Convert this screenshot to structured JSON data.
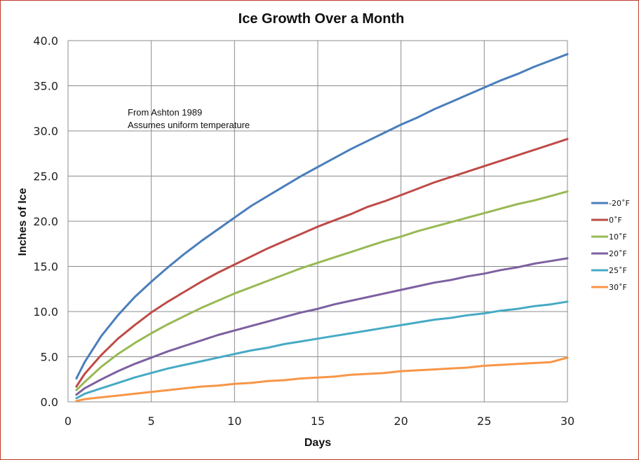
{
  "chart_data": {
    "type": "line",
    "title": "Ice Growth Over a Month",
    "xlabel": "Days",
    "ylabel": "Inches of Ice",
    "xlim": [
      0,
      30
    ],
    "ylim": [
      0,
      40
    ],
    "x_ticks": [
      "0",
      "5",
      "10",
      "15",
      "20",
      "25",
      "30"
    ],
    "y_ticks": [
      "0.0",
      "5.0",
      "10.0",
      "15.0",
      "20.0",
      "25.0",
      "30.0",
      "35.0",
      "40.0"
    ],
    "grid": true,
    "legend_position": "right",
    "annotations": [
      "From Ashton 1989",
      "Assumes uniform temperature"
    ],
    "x": [
      0.5,
      1,
      2,
      3,
      4,
      5,
      6,
      7,
      8,
      9,
      10,
      11,
      12,
      13,
      14,
      15,
      16,
      17,
      18,
      19,
      20,
      21,
      22,
      23,
      24,
      25,
      26,
      27,
      28,
      29,
      30
    ],
    "series": [
      {
        "name": "-20˚F",
        "color": "#4a7ebb",
        "values": [
          2.6,
          4.4,
          7.3,
          9.6,
          11.6,
          13.3,
          14.9,
          16.4,
          17.8,
          19.1,
          20.4,
          21.7,
          22.8,
          23.9,
          25.0,
          26.0,
          27.0,
          28.0,
          28.9,
          29.8,
          30.7,
          31.5,
          32.4,
          33.2,
          34.0,
          34.8,
          35.6,
          36.3,
          37.1,
          37.8,
          38.5
        ]
      },
      {
        "name": "0˚F",
        "color": "#be4b48",
        "values": [
          1.7,
          3.1,
          5.2,
          7.0,
          8.5,
          9.9,
          11.1,
          12.2,
          13.3,
          14.3,
          15.2,
          16.1,
          17.0,
          17.8,
          18.6,
          19.4,
          20.1,
          20.8,
          21.6,
          22.2,
          22.9,
          23.6,
          24.3,
          24.9,
          25.5,
          26.1,
          26.7,
          27.3,
          27.9,
          28.5,
          29.1
        ]
      },
      {
        "name": "10˚F",
        "color": "#98b954",
        "values": [
          1.3,
          2.2,
          3.9,
          5.3,
          6.5,
          7.6,
          8.6,
          9.5,
          10.4,
          11.2,
          12.0,
          12.7,
          13.4,
          14.1,
          14.8,
          15.4,
          16.0,
          16.6,
          17.2,
          17.8,
          18.3,
          18.9,
          19.4,
          19.9,
          20.4,
          20.9,
          21.4,
          21.9,
          22.3,
          22.8,
          23.3
        ]
      },
      {
        "name": "20˚F",
        "color": "#7d60a0",
        "values": [
          0.8,
          1.5,
          2.5,
          3.4,
          4.2,
          4.9,
          5.6,
          6.2,
          6.8,
          7.4,
          7.9,
          8.4,
          8.9,
          9.4,
          9.9,
          10.3,
          10.8,
          11.2,
          11.6,
          12.0,
          12.4,
          12.8,
          13.2,
          13.5,
          13.9,
          14.2,
          14.6,
          14.9,
          15.3,
          15.6,
          15.9
        ]
      },
      {
        "name": "25˚F",
        "color": "#46aac5",
        "values": [
          0.4,
          0.9,
          1.5,
          2.1,
          2.7,
          3.2,
          3.7,
          4.1,
          4.5,
          4.9,
          5.3,
          5.7,
          6.0,
          6.4,
          6.7,
          7.0,
          7.3,
          7.6,
          7.9,
          8.2,
          8.5,
          8.8,
          9.1,
          9.3,
          9.6,
          9.8,
          10.1,
          10.3,
          10.6,
          10.8,
          11.1
        ]
      },
      {
        "name": "30˚F",
        "color": "#f79646",
        "values": [
          0.1,
          0.3,
          0.5,
          0.7,
          0.9,
          1.1,
          1.3,
          1.5,
          1.7,
          1.8,
          2.0,
          2.1,
          2.3,
          2.4,
          2.6,
          2.7,
          2.8,
          3.0,
          3.1,
          3.2,
          3.4,
          3.5,
          3.6,
          3.7,
          3.8,
          4.0,
          4.1,
          4.2,
          4.3,
          4.4,
          4.9
        ]
      }
    ]
  }
}
